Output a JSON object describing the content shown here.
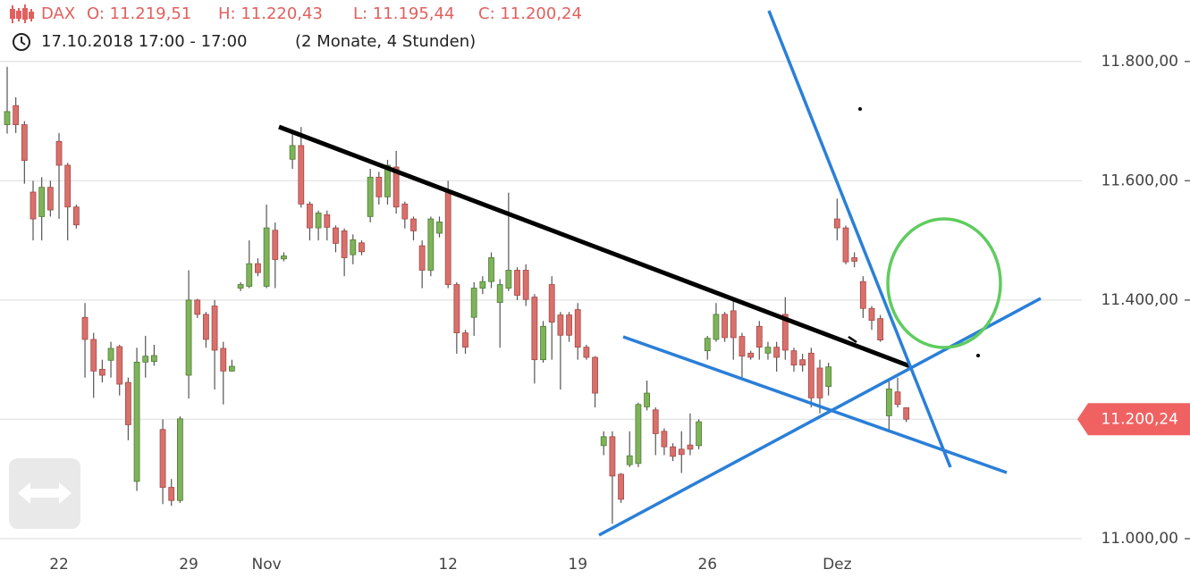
{
  "chart_data": {
    "type": "candlestick",
    "header": {
      "symbol": "DAX",
      "open": "O: 11.219,51",
      "high": "H: 11.220,43",
      "low": "L: 11.195,44",
      "close": "C: 11.200,24",
      "range": "17.10.2018 17:00 - 17:00",
      "span": "(2 Monate, 4 Stunden)"
    },
    "categories": [
      null,
      null,
      null,
      null,
      null,
      null,
      "22",
      null,
      null,
      null,
      null,
      null,
      null,
      null,
      null,
      null,
      null,
      null,
      null,
      null,
      null,
      "29",
      null,
      null,
      null,
      null,
      null,
      null,
      null,
      null,
      "Nov",
      null,
      null,
      null,
      null,
      null,
      null,
      null,
      null,
      null,
      null,
      null,
      null,
      null,
      null,
      null,
      null,
      null,
      null,
      null,
      null,
      "12",
      null,
      null,
      null,
      null,
      null,
      null,
      null,
      null,
      null,
      null,
      null,
      null,
      null,
      null,
      "19",
      null,
      null,
      null,
      null,
      null,
      null,
      null,
      null,
      null,
      null,
      null,
      null,
      null,
      null,
      "26",
      null,
      null,
      null,
      null,
      null,
      null,
      null,
      null,
      null,
      null,
      null,
      null,
      null,
      null,
      "Dez",
      null,
      null,
      null,
      null,
      null,
      null,
      null,
      null
    ],
    "open": [
      11694,
      11726,
      11694,
      11581,
      11540,
      11589,
      11666,
      11626,
      11556,
      11371,
      11334,
      11284,
      11299,
      11322,
      11262,
      11096,
      11296,
      11297,
      11183,
      11086,
      11064,
      11274,
      11400,
      11376,
      11390,
      11319,
      11281,
      11420,
      11423,
      11461,
      11423,
      11517,
      11469,
      11636,
      11659,
      11561,
      11521,
      11543,
      11521,
      11516,
      11476,
      11496,
      11540,
      11606,
      11573,
      11623,
      11561,
      11536,
      11491,
      11450,
      11512,
      11581,
      11426,
      11345,
      11371,
      11420,
      11431,
      11396,
      11420,
      11450,
      11450,
      11405,
      11300,
      11426,
      11375,
      11375,
      11384,
      11321,
      11304,
      11156,
      11171,
      11108,
      11124,
      11126,
      11221,
      11216,
      11180,
      11154,
      11150,
      11157,
      11156,
      11315,
      11334,
      11376,
      11382,
      11339,
      11311,
      11356,
      11311,
      11321,
      11376,
      11315,
      11300,
      11311,
      11286,
      11255,
      11536,
      11521,
      11471,
      11431,
      11386,
      11369,
      11206,
      11246,
      11219.51
    ],
    "high": [
      11791,
      11740,
      11700,
      11600,
      11606,
      11600,
      11680,
      11630,
      11560,
      11395,
      11345,
      11300,
      11330,
      11325,
      11270,
      11320,
      11340,
      11325,
      11200,
      11100,
      11205,
      11450,
      11402,
      11380,
      11400,
      11330,
      11300,
      11430,
      11500,
      11470,
      11560,
      11530,
      11480,
      11680,
      11690,
      11565,
      11550,
      11550,
      11525,
      11520,
      11510,
      11500,
      11620,
      11615,
      11635,
      11650,
      11565,
      11540,
      11500,
      11540,
      11540,
      11600,
      11430,
      11350,
      11430,
      11440,
      11480,
      11435,
      11580,
      11455,
      11460,
      11410,
      11365,
      11440,
      11380,
      11380,
      11395,
      11325,
      11306,
      11180,
      11180,
      11110,
      11180,
      11228,
      11265,
      11220,
      11185,
      11160,
      11180,
      11210,
      11200,
      11340,
      11395,
      11380,
      11405,
      11345,
      11315,
      11365,
      11330,
      11330,
      11405,
      11320,
      11310,
      11320,
      11300,
      11295,
      11570,
      11525,
      11480,
      11440,
      11390,
      11375,
      11265,
      11270,
      11220.43
    ],
    "low": [
      11679,
      11680,
      11595,
      11500,
      11500,
      11540,
      11536,
      11500,
      11520,
      11270,
      11236,
      11262,
      11270,
      11240,
      11165,
      11080,
      11270,
      11290,
      11058,
      11055,
      11060,
      11235,
      11370,
      11320,
      11250,
      11225,
      11280,
      11415,
      11420,
      11440,
      11420,
      11420,
      11465,
      11620,
      11555,
      11500,
      11500,
      11500,
      11480,
      11440,
      11460,
      11475,
      11530,
      11560,
      11560,
      11545,
      11520,
      11500,
      11420,
      11440,
      11505,
      11420,
      11310,
      11310,
      11340,
      11410,
      11420,
      11320,
      11415,
      11400,
      11390,
      11260,
      11295,
      11300,
      11250,
      11330,
      11300,
      11300,
      11220,
      11140,
      11025,
      11060,
      11120,
      11120,
      11215,
      11140,
      11140,
      11130,
      11110,
      11140,
      11150,
      11300,
      11330,
      11330,
      11300,
      11270,
      11300,
      11300,
      11300,
      11280,
      11300,
      11280,
      11280,
      11220,
      11210,
      11240,
      11500,
      11460,
      11455,
      11370,
      11350,
      11330,
      11180,
      11220,
      11195.44
    ],
    "close": [
      11716,
      11694,
      11634,
      11536,
      11589,
      11551,
      11626,
      11556,
      11526,
      11334,
      11281,
      11274,
      11319,
      11259,
      11191,
      11296,
      11306,
      11307,
      11086,
      11064,
      11201,
      11400,
      11376,
      11334,
      11316,
      11281,
      11289,
      11426,
      11461,
      11446,
      11521,
      11468,
      11474,
      11659,
      11561,
      11521,
      11546,
      11522,
      11495,
      11471,
      11501,
      11481,
      11606,
      11573,
      11626,
      11556,
      11536,
      11516,
      11450,
      11536,
      11531,
      11426,
      11345,
      11321,
      11420,
      11431,
      11471,
      11426,
      11450,
      11408,
      11401,
      11300,
      11356,
      11363,
      11341,
      11341,
      11321,
      11304,
      11244,
      11171,
      11105,
      11066,
      11139,
      11225,
      11244,
      11176,
      11154,
      11138,
      11141,
      11150,
      11196,
      11336,
      11376,
      11337,
      11337,
      11306,
      11304,
      11321,
      11321,
      11304,
      11316,
      11291,
      11291,
      11236,
      11236,
      11288,
      11521,
      11464,
      11465,
      11386,
      11366,
      11333,
      11251,
      11225,
      11200.24
    ],
    "up_color": "#7fb35a",
    "down_color": "#d9706c",
    "ylim": [
      10982,
      11903
    ],
    "yticks": [
      {
        "value": 11000,
        "label": "11.000,00"
      },
      {
        "value": 11200,
        "label": "11.200,00"
      },
      {
        "value": 11400,
        "label": "11.400,00"
      },
      {
        "value": 11600,
        "label": "11.600,00"
      },
      {
        "value": 11800,
        "label": "11.800,00"
      }
    ],
    "grid": true,
    "last_price": {
      "value": 11200.24,
      "label": "11.200,24"
    }
  }
}
